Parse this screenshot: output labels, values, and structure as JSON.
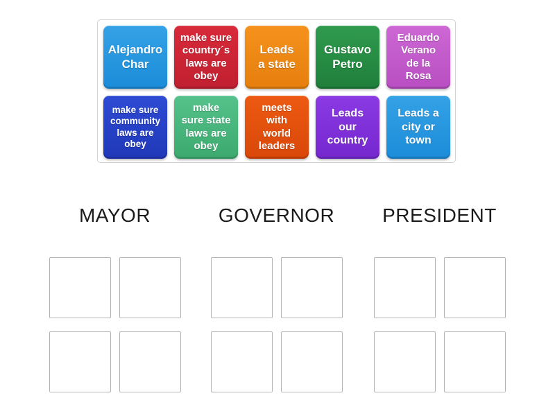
{
  "page": {
    "background_color": "#ffffff",
    "activity_type": "group-sort"
  },
  "tile_pool": {
    "tiles": [
      {
        "label": "Alejandro\nChar",
        "color_top": "#35A2E6",
        "color_bottom": "#1B8CD9"
      },
      {
        "label": "make sure\ncountry´s\nlaws are\nobey",
        "color_top": "#D82A3A",
        "color_bottom": "#C02030"
      },
      {
        "label": "Leads\na state",
        "color_top": "#F5921C",
        "color_bottom": "#E67E0E"
      },
      {
        "label": "Gustavo\nPetro",
        "color_top": "#2F9B4E",
        "color_bottom": "#1F7E3A"
      },
      {
        "label": "Eduardo\nVerano\nde la\nRosa",
        "color_top": "#CD68D4",
        "color_bottom": "#B84EC2"
      },
      {
        "label": "make sure\ncommunity\nlaws are\nobey",
        "color_top": "#2E4BD4",
        "color_bottom": "#2038B8"
      },
      {
        "label": "make\nsure state\nlaws are\nobey",
        "color_top": "#55C28B",
        "color_bottom": "#3CA96E"
      },
      {
        "label": "meets\nwith\nworld\nleaders",
        "color_top": "#EC5A12",
        "color_bottom": "#D9470A"
      },
      {
        "label": "Leads\nour\ncountry",
        "color_top": "#8B3AE4",
        "color_bottom": "#7527CE"
      },
      {
        "label": "Leads a\ncity or\ntown",
        "color_top": "#35A2E6",
        "color_bottom": "#1B8CD9"
      }
    ]
  },
  "groups": [
    {
      "label": "MAYOR",
      "empty_slot_count": 4
    },
    {
      "label": "GOVERNOR",
      "empty_slot_count": 4
    },
    {
      "label": "PRESIDENT",
      "empty_slot_count": 4
    }
  ],
  "text_color": "#1b1b1b",
  "slot_border_color": "#b4b4b4",
  "pool_border_color": "#cfd1d2"
}
